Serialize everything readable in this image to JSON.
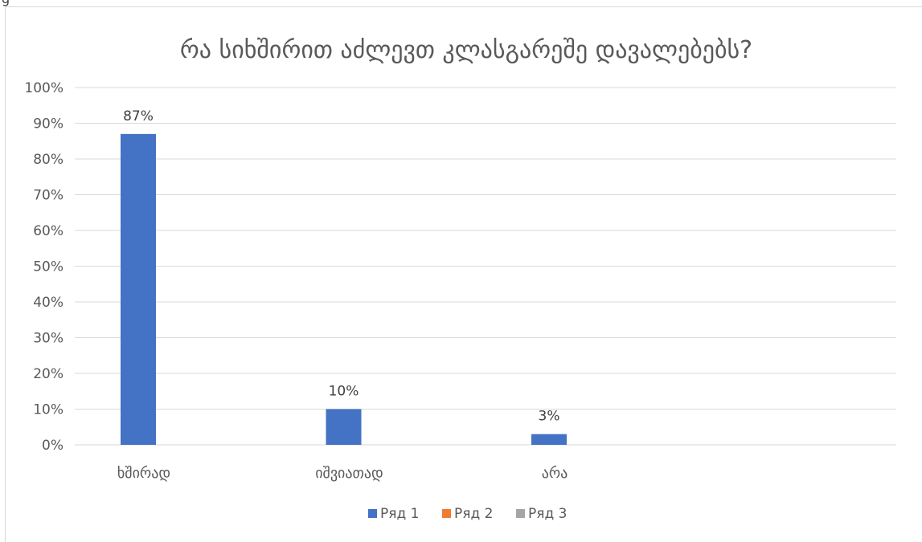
{
  "top_fragment": "g",
  "chart_data": {
    "type": "bar",
    "title": "რა სიხშირით აძლევთ კლასგარეშე დავალებებს?",
    "categories": [
      "ხშირად",
      "იშვიათად",
      "არა",
      ""
    ],
    "series": [
      {
        "name": "Ряд 1",
        "values": [
          87,
          10,
          3,
          null
        ],
        "color": "#4472C4"
      },
      {
        "name": "Ряд 2",
        "values": [
          null,
          null,
          null,
          null
        ],
        "color": "#ED7D31"
      },
      {
        "name": "Ряд 3",
        "values": [
          null,
          null,
          null,
          null
        ],
        "color": "#A5A5A5"
      }
    ],
    "data_labels": [
      "87%",
      "10%",
      "3%"
    ],
    "ylim": [
      0,
      100
    ],
    "yticks": [
      "0%",
      "10%",
      "20%",
      "30%",
      "40%",
      "50%",
      "60%",
      "70%",
      "80%",
      "90%",
      "100%"
    ],
    "grid": true,
    "legend_position": "bottom",
    "gridline_color": "#d9d9d9"
  }
}
